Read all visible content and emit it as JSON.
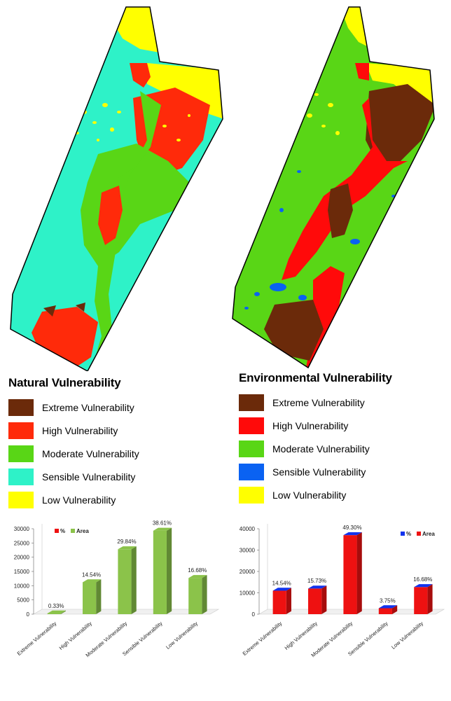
{
  "maps": [
    {
      "title": "Natural Vulnerability",
      "legend": [
        {
          "label": "Extreme Vulnerability",
          "color": "#6b2a0a"
        },
        {
          "label": "High Vulnerability",
          "color": "#ff2a0a"
        },
        {
          "label": "Moderate Vulnerability",
          "color": "#59d616"
        },
        {
          "label": "Sensible Vulnerability",
          "color": "#2ef2c8"
        },
        {
          "label": "Low Vulnerability",
          "color": "#ffff00"
        }
      ]
    },
    {
      "title": "Environmental Vulnerability",
      "legend": [
        {
          "label": "Extreme Vulnerability",
          "color": "#6b2a0a"
        },
        {
          "label": "High Vulnerability",
          "color": "#ff0a0a"
        },
        {
          "label": "Moderate Vulnerability",
          "color": "#59d616"
        },
        {
          "label": "Sensible Vulnerability",
          "color": "#0a62f2"
        },
        {
          "label": "Low Vulnerability",
          "color": "#ffff00"
        }
      ]
    }
  ],
  "chart_data": [
    {
      "type": "bar",
      "categories": [
        "Extreme Vulnerability",
        "High Vulnerability",
        "Moderate Vulnerability",
        "Sensible Vulnerability",
        "Low Vulnerability"
      ],
      "series": [
        {
          "name": "Area",
          "values": [
            250,
            11200,
            22800,
            29300,
            12700
          ],
          "color": "#8bc34a"
        }
      ],
      "percent_labels": [
        "0.33%",
        "14.54%",
        "29.84%",
        "38.61%",
        "16.68%"
      ],
      "legend_items": [
        {
          "name": "%",
          "color": "#ee1111"
        },
        {
          "name": "Area",
          "color": "#8bc34a"
        }
      ],
      "legend_position": "top",
      "yticks": [
        0,
        5000,
        10000,
        15000,
        20000,
        25000,
        30000
      ],
      "ylim": [
        0,
        30000
      ]
    },
    {
      "type": "bar",
      "categories": [
        "Extreme Vulnerability",
        "High Vulnerability",
        "Moderate Vulnerability",
        "Sensible Vulnerability",
        "Low Vulnerability"
      ],
      "series": [
        {
          "name": "Area",
          "values": [
            11000,
            12000,
            37000,
            2800,
            12700
          ],
          "color": "#ee1111"
        }
      ],
      "percent_labels": [
        "14.54%",
        "15.73%",
        "49.30%",
        "3.75%",
        "16.68%"
      ],
      "legend_items": [
        {
          "name": "%",
          "color": "#1133ee"
        },
        {
          "name": "Area",
          "color": "#ee1111"
        }
      ],
      "legend_position": "top-right",
      "yticks": [
        0,
        10000,
        20000,
        30000,
        40000
      ],
      "ylim": [
        0,
        40000
      ]
    }
  ]
}
